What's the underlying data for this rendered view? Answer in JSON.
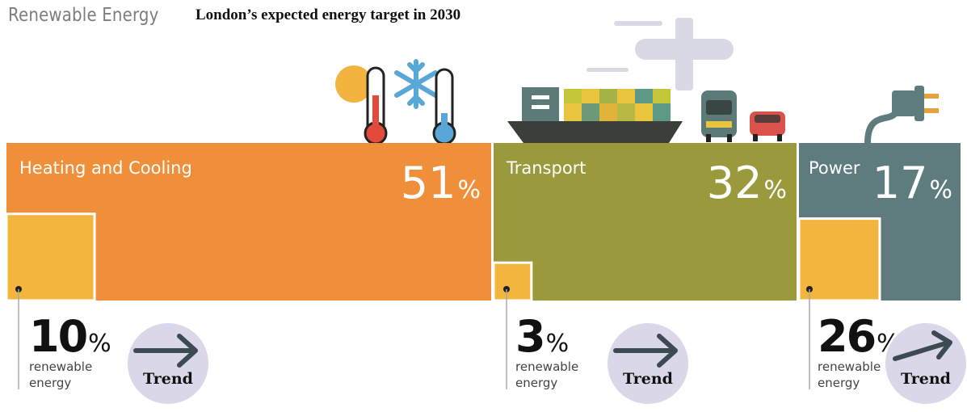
{
  "header": {
    "label": "Renewable Energy",
    "title": "London’s expected energy target in 2030"
  },
  "chart_data": {
    "type": "treemap",
    "title": "London’s expected energy target in 2030",
    "series_labels": {
      "share_unit": "%",
      "renewable_caption": "renewable energy",
      "trend_label": "Trend"
    },
    "sectors": [
      {
        "name": "Heating and Cooling",
        "share": 51,
        "renewable": 10,
        "color": "#ef8f3a",
        "renewable_color": "#f4b53f"
      },
      {
        "name": "Transport",
        "share": 32,
        "renewable": 3,
        "color": "#9a9a3c",
        "renewable_color": "#f4b53f"
      },
      {
        "name": "Power",
        "share": 17,
        "renewable": 26,
        "color": "#5e7b7e",
        "renewable_color": "#f4b53f"
      }
    ]
  },
  "labels": {
    "heating": {
      "name": "Heating and Cooling",
      "share": "51",
      "renewable": "10",
      "cap1": "renewable",
      "cap2": "energy"
    },
    "transport": {
      "name": "Transport",
      "share": "32",
      "renewable": "3",
      "cap1": "renewable",
      "cap2": "energy"
    },
    "power": {
      "name": "Power",
      "share": "17",
      "renewable": "26",
      "cap1": "renewable",
      "cap2": "energy"
    },
    "pct": "%",
    "trend": "Trend"
  },
  "colors": {
    "heating": "#ef8f3a",
    "transport": "#9a9a3c",
    "power": "#5e7b7e",
    "renewable": "#f4b53f",
    "trend_bg": "#d9d7e8"
  },
  "icons": [
    "sun-icon",
    "thermometer-hot-icon",
    "snowflake-icon",
    "thermometer-cold-icon",
    "cargo-ship-icon",
    "airplane-icon",
    "bus-icon",
    "car-icon",
    "plug-icon",
    "arrow-right-icon"
  ]
}
